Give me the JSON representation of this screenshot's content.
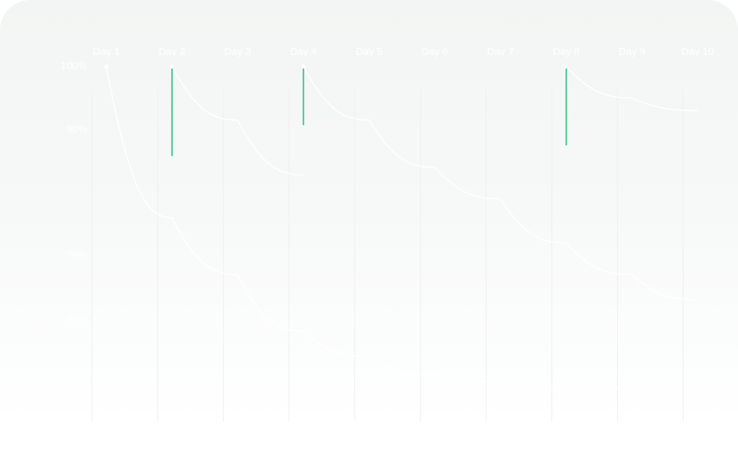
{
  "chart_data": {
    "type": "line",
    "categories": [
      "Day 1",
      "Day 2",
      "Day 3",
      "Day 4",
      "Day 5",
      "Day 6",
      "Day 7",
      "Day 8",
      "Day 9",
      "Day 10"
    ],
    "ylim": [
      48,
      100
    ],
    "yticks": [
      {
        "value": 100,
        "label": "100%"
      },
      {
        "value": 90,
        "label": "90%"
      },
      {
        "value": 70,
        "label": "70%"
      },
      {
        "value": 60,
        "label": "60%"
      },
      {
        "value": 50,
        "label": "50%"
      }
    ],
    "series": [
      {
        "color": "#ffffff",
        "values": [
          100,
          76,
          67,
          58,
          54,
          51,
          50,
          49,
          49,
          null
        ]
      },
      {
        "color": "#ffffff",
        "values": [
          null,
          100,
          91.5,
          82.8,
          null,
          null,
          null,
          null,
          null,
          null
        ]
      },
      {
        "color": "#ffffff",
        "values": [
          null,
          null,
          null,
          100,
          91.5,
          84,
          79,
          72,
          67,
          63
        ]
      },
      {
        "color": "#ffffff",
        "values": [
          null,
          null,
          null,
          null,
          null,
          null,
          null,
          100,
          95,
          93
        ]
      }
    ],
    "reviews": {
      "color": "#3dbf8a",
      "values": [
        null,
        85.8,
        null,
        90.7,
        null,
        null,
        null,
        87.5,
        null,
        null
      ]
    }
  }
}
